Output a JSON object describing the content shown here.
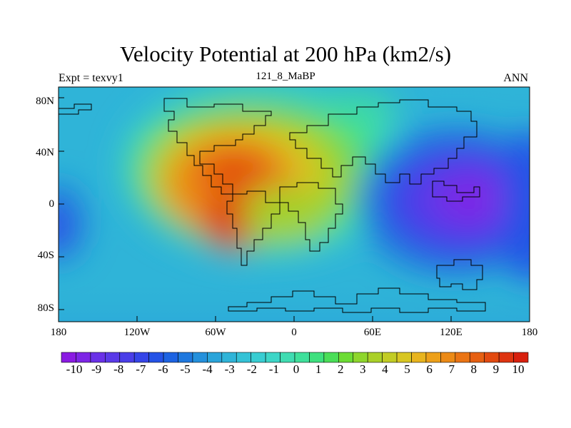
{
  "figure": {
    "title": "Velocity Potential at 200 hPa (km2/s)",
    "left_label": "Expt = texvy1",
    "center_label": "121_8_MaBP",
    "right_label": "ANN"
  },
  "axes": {
    "lat_ticks": [
      "80N",
      "40N",
      "0",
      "40S",
      "80S"
    ],
    "lon_ticks": [
      "180",
      "120W",
      "60W",
      "0",
      "60E",
      "120E",
      "180"
    ],
    "lon_range": [
      -180,
      180
    ],
    "lat_range": [
      -90,
      90
    ]
  },
  "colorbar": {
    "labels": [
      "-10",
      "-9",
      "-8",
      "-7",
      "-6",
      "-5",
      "-4",
      "-3",
      "-2",
      "-1",
      "0",
      "1",
      "2",
      "3",
      "4",
      "5",
      "6",
      "7",
      "8",
      "9",
      "10"
    ],
    "colors": [
      "#8a1be2",
      "#7d26e6",
      "#6a31e8",
      "#5a3ae8",
      "#4a3ee8",
      "#3545e8",
      "#2452e6",
      "#1d63e2",
      "#1f78de",
      "#2490dc",
      "#2aa4da",
      "#2fb4d8",
      "#34c2d6",
      "#38cdd2",
      "#3dd6c7",
      "#40dcb2",
      "#3fe09b",
      "#3ee07e",
      "#4ade58",
      "#6cdc34",
      "#8ed62c",
      "#aad028",
      "#c2cc24",
      "#d8c622",
      "#e8b41e",
      "#eda01a",
      "#ec8a16",
      "#ea7414",
      "#e66012",
      "#e24a10",
      "#de3410",
      "#d8200e"
    ]
  },
  "map_data": {
    "variable": "velocity potential",
    "level_hPa": 200,
    "units": "km2/s",
    "contour_range": [
      -10,
      10
    ],
    "field_centers": [
      {
        "name": "Western hemisphere maximum (north)",
        "lon": -45,
        "lat": 20,
        "value": 8.5
      },
      {
        "name": "Western hemisphere maximum (south)",
        "lon": -40,
        "lat": -18,
        "value": 9.0
      },
      {
        "name": "Eastern hemisphere minimum",
        "lon": 125,
        "lat": 0,
        "value": -10
      },
      {
        "name": "Dateline minimum",
        "lon": -178,
        "lat": -15,
        "value": -6
      }
    ]
  }
}
